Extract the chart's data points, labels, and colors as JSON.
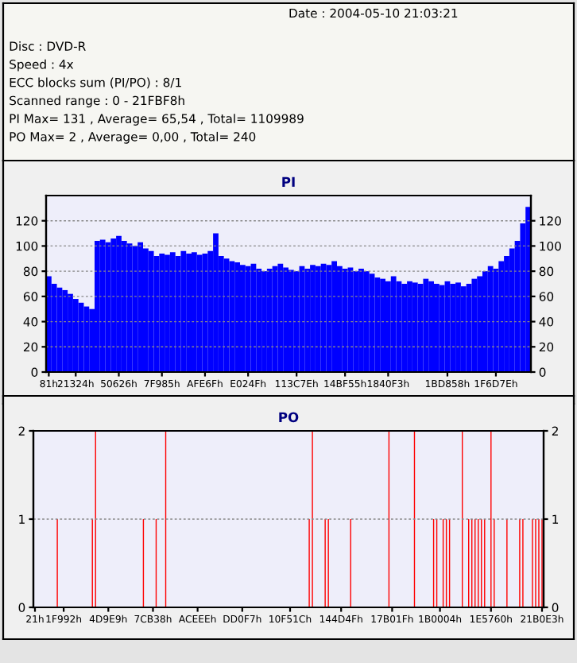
{
  "chart_data": [
    {
      "type": "other",
      "annotations": [
        "Date : 2004-05-10 21:03:21",
        "Disc : DVD-R",
        "Speed : 4x",
        "ECC blocks sum (PI/PO) : 8/1",
        "Scanned range : 0 - 21FBF8h",
        "PI Max= 131 , Average= 65,54 , Total= 1109989",
        "PO Max= 2 , Average= 0,00 , Total= 240"
      ]
    },
    {
      "type": "bar",
      "title": "PI",
      "grid": "y",
      "ylim": [
        0,
        140
      ],
      "yticks": [
        0,
        20,
        40,
        60,
        80,
        100,
        120
      ],
      "y2lim": [
        0,
        140
      ],
      "y2ticks": [
        0,
        20,
        40,
        60,
        80,
        100,
        120
      ],
      "categories": [
        "81h",
        null,
        null,
        null,
        null,
        "21324h",
        null,
        null,
        null,
        null,
        null,
        null,
        null,
        "50626h",
        null,
        null,
        null,
        null,
        null,
        null,
        null,
        "7F985h",
        null,
        null,
        null,
        null,
        null,
        null,
        null,
        "AFE6Fh",
        null,
        null,
        null,
        null,
        null,
        null,
        null,
        "E024Fh",
        null,
        null,
        null,
        null,
        null,
        null,
        null,
        null,
        "113C7Eh",
        null,
        null,
        null,
        null,
        null,
        null,
        null,
        null,
        "14BF55h",
        null,
        null,
        null,
        null,
        null,
        null,
        null,
        "1840F3h",
        null,
        null,
        null,
        null,
        null,
        null,
        null,
        null,
        null,
        null,
        "1BD858h",
        null,
        null,
        null,
        null,
        null,
        null,
        null,
        null,
        "1F6D7Eh",
        null,
        null,
        null,
        null,
        null,
        null
      ],
      "series": [
        {
          "color": "#0000ff",
          "values": [
            76,
            70,
            67,
            65,
            62,
            58,
            55,
            52,
            50,
            104,
            105,
            103,
            106,
            108,
            104,
            102,
            100,
            103,
            98,
            96,
            92,
            94,
            93,
            95,
            92,
            96,
            94,
            95,
            93,
            94,
            96,
            110,
            92,
            90,
            88,
            87,
            85,
            84,
            86,
            82,
            80,
            82,
            84,
            86,
            83,
            81,
            80,
            84,
            82,
            85,
            84,
            86,
            85,
            88,
            84,
            82,
            83,
            80,
            82,
            80,
            78,
            75,
            74,
            72,
            76,
            72,
            70,
            72,
            71,
            70,
            74,
            72,
            70,
            69,
            72,
            70,
            71,
            68,
            70,
            74,
            76,
            80,
            84,
            82,
            88,
            92,
            98,
            104,
            118,
            131
          ]
        }
      ]
    },
    {
      "type": "bar",
      "title": "PO",
      "grid": "y",
      "ylim": [
        0,
        2
      ],
      "yticks": [
        0,
        1,
        2
      ],
      "y2lim": [
        0,
        2
      ],
      "y2ticks": [
        0,
        1,
        2
      ],
      "categories": [
        "21h",
        null,
        null,
        null,
        null,
        null,
        null,
        null,
        null,
        "1F992h",
        null,
        null,
        null,
        null,
        null,
        null,
        null,
        null,
        null,
        null,
        null,
        null,
        null,
        "4D9E9h",
        null,
        null,
        null,
        null,
        null,
        null,
        null,
        null,
        null,
        null,
        null,
        null,
        null,
        "7CB38h",
        null,
        null,
        null,
        null,
        null,
        null,
        null,
        null,
        null,
        null,
        null,
        null,
        null,
        "ACEEEh",
        null,
        null,
        null,
        null,
        null,
        null,
        null,
        null,
        null,
        null,
        null,
        null,
        null,
        "DD0F7h",
        null,
        null,
        null,
        null,
        null,
        null,
        null,
        null,
        null,
        null,
        null,
        null,
        null,
        null,
        "10F51Ch",
        null,
        null,
        null,
        null,
        null,
        null,
        null,
        null,
        null,
        null,
        null,
        null,
        null,
        null,
        null,
        "144D4Fh",
        null,
        null,
        null,
        null,
        null,
        null,
        null,
        null,
        null,
        null,
        null,
        null,
        null,
        null,
        null,
        "17B01Fh",
        null,
        null,
        null,
        null,
        null,
        null,
        null,
        null,
        null,
        null,
        null,
        null,
        null,
        null,
        "1B0004h",
        null,
        null,
        null,
        null,
        null,
        null,
        null,
        null,
        null,
        null,
        null,
        null,
        null,
        null,
        null,
        "1E5760h",
        null,
        null,
        null,
        null,
        null,
        null,
        null,
        null,
        null,
        null,
        null,
        null,
        null,
        null,
        null,
        "21B0E3h"
      ],
      "series": [
        {
          "color": "#ff0000",
          "values": [
            0,
            0,
            0,
            0,
            0,
            0,
            0,
            1,
            0,
            0,
            0,
            0,
            0,
            0,
            0,
            0,
            0,
            0,
            1,
            2,
            0,
            0,
            0,
            0,
            0,
            0,
            0,
            0,
            0,
            0,
            0,
            0,
            0,
            0,
            1,
            0,
            0,
            0,
            1,
            0,
            0,
            2,
            0,
            0,
            0,
            0,
            0,
            0,
            0,
            0,
            0,
            0,
            0,
            0,
            0,
            0,
            0,
            0,
            0,
            0,
            0,
            0,
            0,
            0,
            0,
            0,
            0,
            0,
            0,
            0,
            0,
            0,
            0,
            0,
            0,
            0,
            0,
            0,
            0,
            0,
            0,
            0,
            0,
            0,
            0,
            0,
            1,
            2,
            0,
            0,
            0,
            1,
            1,
            0,
            0,
            0,
            0,
            0,
            0,
            1,
            0,
            0,
            0,
            0,
            0,
            0,
            0,
            0,
            0,
            0,
            0,
            2,
            0,
            0,
            0,
            0,
            0,
            0,
            0,
            2,
            0,
            0,
            0,
            0,
            0,
            1,
            1,
            0,
            1,
            1,
            1,
            0,
            0,
            0,
            2,
            0,
            1,
            1,
            1,
            1,
            1,
            1,
            0,
            2,
            1,
            0,
            0,
            0,
            1,
            0,
            0,
            0,
            1,
            1,
            0,
            0,
            1,
            1,
            1,
            1
          ]
        }
      ]
    }
  ]
}
